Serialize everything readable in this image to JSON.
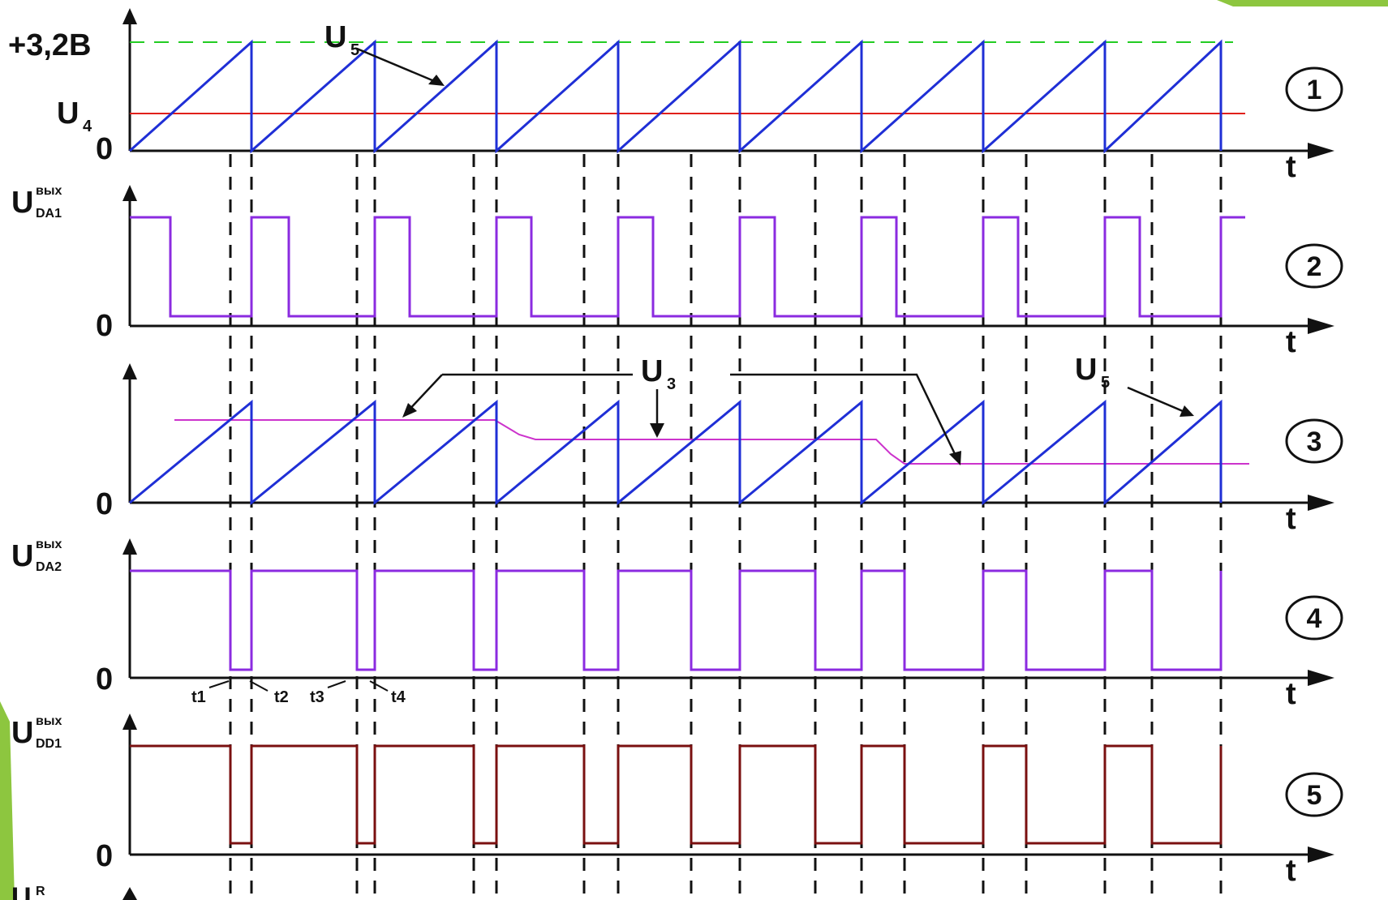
{
  "theme": {
    "green": "#8dc63f",
    "blue": "#1f2fd6",
    "red": "#e0201a",
    "magenta": "#cc33cc",
    "purple": "#8b2be0",
    "maroon": "#7a1010",
    "ref_green": "#22cc22"
  },
  "panel1": {
    "top_label": "+3,2B",
    "ref_label": "U",
    "ref_sub": "4",
    "saw_label": "U",
    "saw_sub": "5",
    "zero": "0",
    "t": "t",
    "index": "1"
  },
  "panel2": {
    "y_label": "U",
    "sup": "вых",
    "sub": "DA1",
    "zero": "0",
    "t": "t",
    "index": "2"
  },
  "panel3": {
    "u3_label": "U",
    "u3_sub": "3",
    "u5_label": "U",
    "u5_sub": "5",
    "zero": "0",
    "t": "t",
    "index": "3"
  },
  "panel4": {
    "y_label": "U",
    "sup": "вых",
    "sub": "DA2",
    "zero": "0",
    "t": "t",
    "index": "4",
    "time_marks": [
      "t1",
      "t2",
      "t3",
      "t4"
    ]
  },
  "panel5": {
    "y_label": "U",
    "sup": "вых",
    "sub": "DD1",
    "zero": "0",
    "t": "t",
    "index": "5"
  },
  "panel6": {
    "y_label": "U",
    "sup": "R"
  }
}
